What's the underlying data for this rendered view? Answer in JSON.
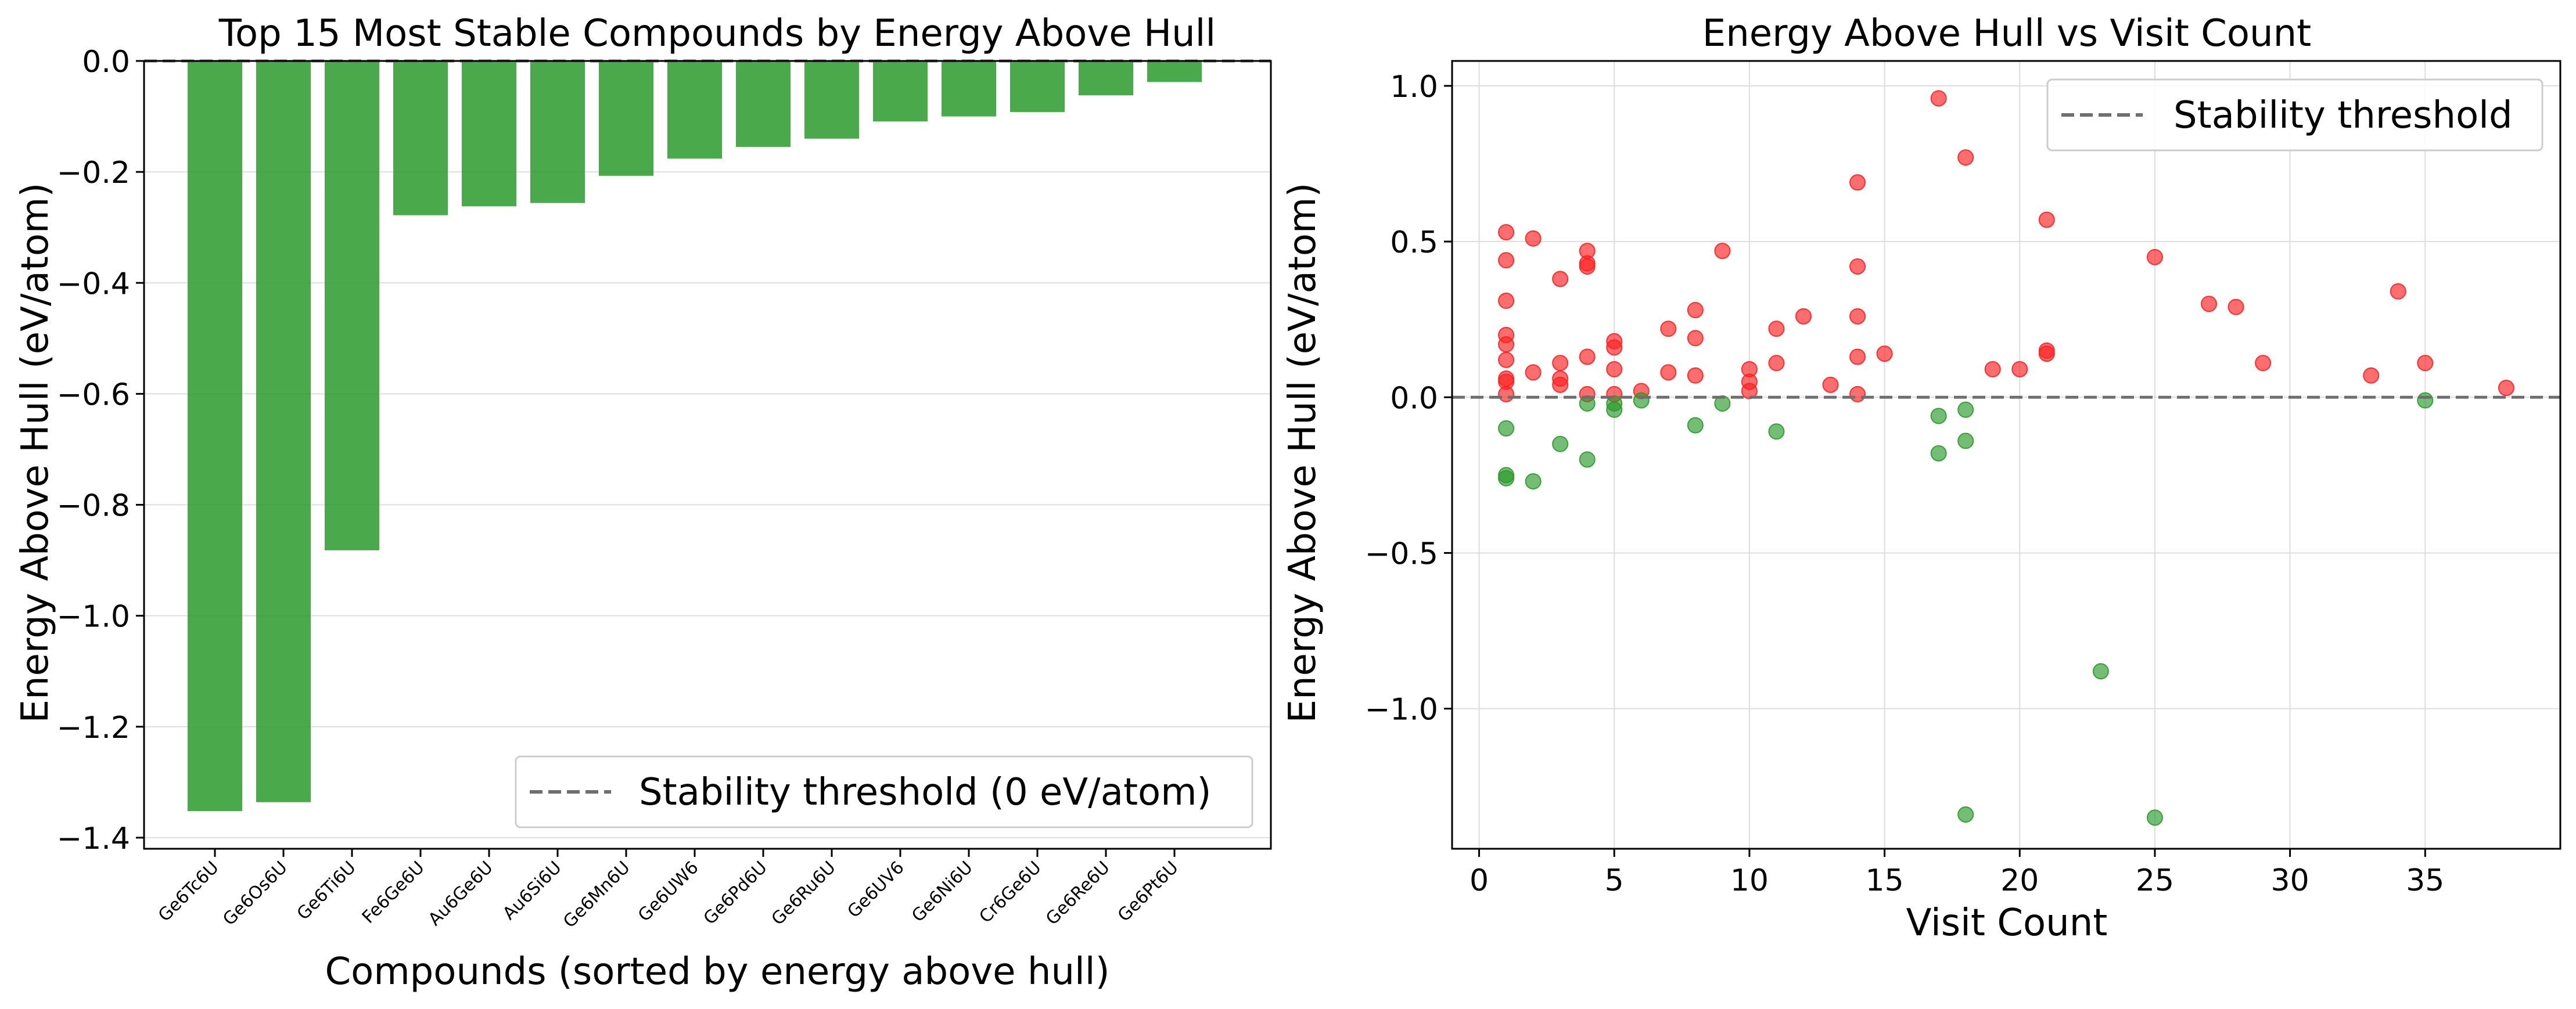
{
  "colors": {
    "stable": "#2a9a2a",
    "unstable": "#ff2020",
    "threshold": "#6e6e6e",
    "grid": "#dddddd"
  },
  "chart_data": [
    {
      "type": "bar",
      "title": "Top 15 Most Stable Compounds by Energy Above Hull",
      "xlabel": "Compounds (sorted by energy above hull)",
      "ylabel": "Energy Above Hull (eV/atom)",
      "categories": [
        "Ge6Tc6U",
        "Ge6Os6U",
        "Ge6Ti6U",
        "Fe6Ge6U",
        "Au6Ge6U",
        "Au6Si6U",
        "Ge6Mn6U",
        "Ge6UW6",
        "Ge6Pd6U",
        "Ge6Ru6U",
        "Ge6UV6",
        "Ge6Ni6U",
        "Cr6Ge6U",
        "Ge6Re6U",
        "Ge6Pt6U"
      ],
      "values": [
        -1.352,
        -1.336,
        -0.882,
        -0.278,
        -0.262,
        -0.256,
        -0.207,
        -0.176,
        -0.155,
        -0.14,
        -0.109,
        -0.1,
        -0.092,
        -0.062,
        -0.038
      ],
      "ylim": [
        -1.42,
        0.0
      ],
      "yticks": [
        0.0,
        -0.2,
        -0.4,
        -0.6,
        -0.8,
        -1.0,
        -1.2,
        -1.4
      ],
      "ytick_labels": [
        "0.0",
        "−0.2",
        "−0.4",
        "−0.6",
        "−0.8",
        "−1.0",
        "−1.2",
        "−1.4"
      ],
      "grid": true,
      "legend": {
        "placement": "lower-right",
        "entries": [
          "Stability threshold (0 eV/atom)"
        ]
      },
      "threshold": 0.0
    },
    {
      "type": "scatter",
      "title": "Energy Above Hull vs Visit Count",
      "xlabel": "Visit Count",
      "ylabel": "Energy Above Hull (eV/atom)",
      "xlim": [
        -1,
        40
      ],
      "ylim": [
        -1.45,
        1.08
      ],
      "xticks": [
        0,
        5,
        10,
        15,
        20,
        25,
        30,
        35
      ],
      "xtick_labels": [
        "0",
        "5",
        "10",
        "15",
        "20",
        "25",
        "30",
        "35"
      ],
      "yticks": [
        1.0,
        0.5,
        0.0,
        -0.5,
        -1.0
      ],
      "ytick_labels": [
        "1.0",
        "0.5",
        "0.0",
        "−0.5",
        "−1.0"
      ],
      "grid": true,
      "legend": {
        "placement": "upper-right",
        "entries": [
          "Stability threshold"
        ]
      },
      "threshold": 0.0,
      "points": [
        [
          1,
          0.53
        ],
        [
          1,
          0.44
        ],
        [
          1,
          0.31
        ],
        [
          1,
          0.2
        ],
        [
          1,
          0.17
        ],
        [
          1,
          0.12
        ],
        [
          1,
          0.06
        ],
        [
          1,
          0.05
        ],
        [
          1,
          0.01
        ],
        [
          2,
          0.51
        ],
        [
          2,
          0.08
        ],
        [
          3,
          0.38
        ],
        [
          3,
          0.11
        ],
        [
          3,
          0.06
        ],
        [
          3,
          0.04
        ],
        [
          4,
          0.47
        ],
        [
          4,
          0.43
        ],
        [
          4,
          0.42
        ],
        [
          4,
          0.13
        ],
        [
          4,
          0.01
        ],
        [
          5,
          0.18
        ],
        [
          5,
          0.16
        ],
        [
          5,
          0.09
        ],
        [
          5,
          0.01
        ],
        [
          6,
          0.02
        ],
        [
          7,
          0.22
        ],
        [
          7,
          0.08
        ],
        [
          8,
          0.28
        ],
        [
          8,
          0.19
        ],
        [
          8,
          0.07
        ],
        [
          9,
          0.47
        ],
        [
          10,
          0.09
        ],
        [
          10,
          0.05
        ],
        [
          10,
          0.02
        ],
        [
          11,
          0.22
        ],
        [
          11,
          0.11
        ],
        [
          12,
          0.26
        ],
        [
          13,
          0.04
        ],
        [
          14,
          0.69
        ],
        [
          14,
          0.42
        ],
        [
          14,
          0.26
        ],
        [
          14,
          0.13
        ],
        [
          14,
          0.01
        ],
        [
          15,
          0.14
        ],
        [
          17,
          0.96
        ],
        [
          18,
          0.77
        ],
        [
          19,
          0.09
        ],
        [
          20,
          0.09
        ],
        [
          21,
          0.57
        ],
        [
          21,
          0.15
        ],
        [
          21,
          0.14
        ],
        [
          25,
          0.45
        ],
        [
          27,
          0.3
        ],
        [
          28,
          0.29
        ],
        [
          29,
          0.11
        ],
        [
          33,
          0.07
        ],
        [
          34,
          0.34
        ],
        [
          35,
          0.11
        ],
        [
          38,
          0.03
        ],
        [
          1,
          -0.1
        ],
        [
          1,
          -0.25
        ],
        [
          1,
          -0.26
        ],
        [
          2,
          -0.27
        ],
        [
          3,
          -0.15
        ],
        [
          4,
          -0.02
        ],
        [
          4,
          -0.2
        ],
        [
          5,
          -0.02
        ],
        [
          5,
          -0.04
        ],
        [
          6,
          -0.01
        ],
        [
          8,
          -0.09
        ],
        [
          9,
          -0.02
        ],
        [
          11,
          -0.11
        ],
        [
          17,
          -0.06
        ],
        [
          17,
          -0.18
        ],
        [
          18,
          -0.04
        ],
        [
          18,
          -0.14
        ],
        [
          18,
          -1.34
        ],
        [
          23,
          -0.88
        ],
        [
          25,
          -1.35
        ],
        [
          35,
          -0.01
        ]
      ]
    }
  ]
}
